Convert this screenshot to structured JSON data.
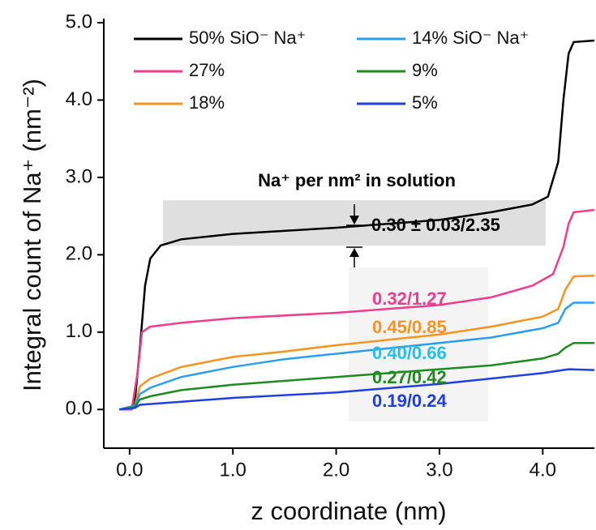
{
  "chart_data": {
    "type": "line",
    "xlabel": "z coordinate (nm)",
    "ylabel": "Integral count of Na⁺ (nm⁻²)",
    "xlim": [
      -0.25,
      4.5
    ],
    "ylim": [
      -0.5,
      5.0
    ],
    "xticks": [
      {
        "value": 0,
        "label": "0.0"
      },
      {
        "value": 1,
        "label": "1.0"
      },
      {
        "value": 2,
        "label": "2.0"
      },
      {
        "value": 3,
        "label": "3.0"
      },
      {
        "value": 4,
        "label": "4.0"
      }
    ],
    "yticks": [
      {
        "value": 0,
        "label": "0.0"
      },
      {
        "value": 1,
        "label": "1.0"
      },
      {
        "value": 2,
        "label": "2.0"
      },
      {
        "value": 3,
        "label": "3.0"
      },
      {
        "value": 4,
        "label": "4.0"
      },
      {
        "value": 5,
        "label": "5.0"
      }
    ],
    "series": [
      {
        "name": "50% SiO⁻ Na⁺",
        "color": "#000000",
        "x": [
          -0.1,
          0,
          0.05,
          0.1,
          0.15,
          0.2,
          0.3,
          0.5,
          1.0,
          2.0,
          3.0,
          3.5,
          3.9,
          4.05,
          4.15,
          4.2,
          4.25,
          4.3,
          4.5
        ],
        "values": [
          0,
          0,
          0.1,
          0.8,
          1.6,
          1.95,
          2.12,
          2.2,
          2.27,
          2.35,
          2.45,
          2.55,
          2.65,
          2.75,
          3.2,
          4.0,
          4.6,
          4.75,
          4.77
        ]
      },
      {
        "name": "27%",
        "color": "#ee3d8c",
        "x": [
          -0.1,
          0.02,
          0.08,
          0.12,
          0.2,
          0.5,
          1.0,
          2.0,
          3.0,
          3.5,
          3.9,
          4.1,
          4.2,
          4.25,
          4.3,
          4.5
        ],
        "values": [
          0,
          0,
          0.5,
          1.0,
          1.07,
          1.12,
          1.18,
          1.25,
          1.35,
          1.45,
          1.6,
          1.75,
          2.1,
          2.4,
          2.55,
          2.58
        ]
      },
      {
        "name": "18%",
        "color": "#f7931e",
        "x": [
          -0.1,
          0.05,
          0.1,
          0.2,
          0.5,
          1.0,
          1.5,
          2.0,
          3.0,
          3.5,
          4.0,
          4.15,
          4.22,
          4.3,
          4.5
        ],
        "values": [
          0,
          0.05,
          0.3,
          0.4,
          0.55,
          0.68,
          0.75,
          0.83,
          0.97,
          1.07,
          1.2,
          1.3,
          1.55,
          1.72,
          1.73
        ]
      },
      {
        "name": "14% SiO⁻ Na⁺",
        "color": "#2b9df0",
        "x": [
          -0.1,
          0.05,
          0.1,
          0.2,
          0.5,
          1.0,
          1.5,
          2.0,
          3.0,
          3.5,
          4.0,
          4.15,
          4.22,
          4.3,
          4.5
        ],
        "values": [
          0,
          0.05,
          0.2,
          0.28,
          0.42,
          0.55,
          0.65,
          0.72,
          0.86,
          0.93,
          1.05,
          1.12,
          1.3,
          1.38,
          1.38
        ]
      },
      {
        "name": "9%",
        "color": "#1f8a1f",
        "x": [
          -0.1,
          0.05,
          0.1,
          0.2,
          0.5,
          1.0,
          2.0,
          3.0,
          3.5,
          4.0,
          4.15,
          4.22,
          4.3,
          4.5
        ],
        "values": [
          0,
          0.03,
          0.13,
          0.17,
          0.25,
          0.32,
          0.42,
          0.52,
          0.57,
          0.66,
          0.72,
          0.8,
          0.86,
          0.86
        ]
      },
      {
        "name": "5%",
        "color": "#1f3fe0",
        "x": [
          -0.1,
          0.05,
          0.1,
          0.5,
          1.0,
          2.0,
          3.0,
          3.5,
          4.0,
          4.15,
          4.25,
          4.5
        ],
        "values": [
          0,
          0.02,
          0.06,
          0.1,
          0.15,
          0.22,
          0.33,
          0.4,
          0.47,
          0.5,
          0.52,
          0.51
        ]
      }
    ],
    "annotations": [
      {
        "text": "Na⁺ per nm² in solution",
        "color": "#000000"
      },
      {
        "text": "0.30 ± 0.03/2.35",
        "color": "#000000"
      },
      {
        "text": "0.32/1.27",
        "color": "#ee3d8c"
      },
      {
        "text": "0.45/0.85",
        "color": "#f7931e"
      },
      {
        "text": "0.40/0.66",
        "color": "#22c0ea"
      },
      {
        "text": "0.27/0.42",
        "color": "#1f8a1f"
      },
      {
        "text": "0.19/0.24",
        "color": "#1f3fe0"
      }
    ]
  }
}
